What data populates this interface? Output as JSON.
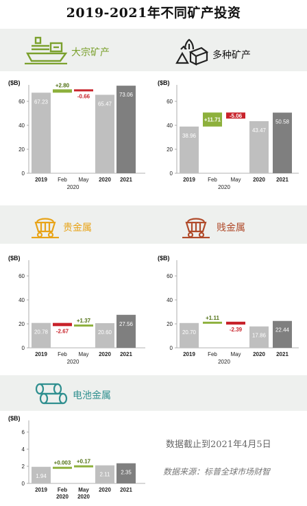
{
  "title": "2019-2021年不同矿产投资",
  "sections": {
    "bulk": {
      "label": "大宗矿产",
      "color": "#7aa02c"
    },
    "diversified": {
      "label": "多种矿产",
      "color": "#111111"
    },
    "precious": {
      "label": "贵金属",
      "color": "#e8a317"
    },
    "base": {
      "label": "贱金属",
      "color": "#b04a2a"
    },
    "battery": {
      "label": "电池金属",
      "color": "#2f8f8f"
    }
  },
  "colors": {
    "light_bar": "#bfbfbf",
    "dark_bar": "#7f7f7f",
    "increase": "#8db03c",
    "decrease": "#c8222a"
  },
  "chart_data": [
    {
      "id": "bulk",
      "type": "bar",
      "subtype": "waterfall",
      "unit": "($B)",
      "ylim": [
        0,
        80
      ],
      "yticks": [
        0,
        20,
        40,
        60
      ],
      "categories": [
        "2019",
        "Feb",
        "May",
        "2020",
        "2021"
      ],
      "year_group_label": "2020",
      "values": [
        67.23,
        2.8,
        -0.66,
        65.47,
        73.06
      ],
      "labels": [
        "67.23",
        "+2.80",
        "-0.66",
        "65.47",
        "73.06"
      ],
      "kinds": [
        "total",
        "increase",
        "decrease",
        "total",
        "total_dark"
      ]
    },
    {
      "id": "diversified",
      "type": "bar",
      "subtype": "waterfall",
      "unit": "($B)",
      "ylim": [
        0,
        80
      ],
      "yticks": [
        0,
        20,
        40,
        60
      ],
      "categories": [
        "2019",
        "Feb",
        "May",
        "2020",
        "2021"
      ],
      "year_group_label": "2020",
      "values": [
        38.96,
        11.71,
        -5.06,
        43.47,
        50.58
      ],
      "labels": [
        "38.96",
        "+11.71",
        "-5.06",
        "43.47",
        "50.58"
      ],
      "kinds": [
        "total",
        "increase",
        "decrease",
        "total",
        "total_dark"
      ]
    },
    {
      "id": "precious",
      "type": "bar",
      "subtype": "waterfall",
      "unit": "($B)",
      "ylim": [
        0,
        80
      ],
      "yticks": [
        0,
        20,
        40,
        60
      ],
      "categories": [
        "2019",
        "Feb",
        "May",
        "2020",
        "2021"
      ],
      "year_group_label": "2020",
      "values": [
        20.78,
        -2.67,
        1.37,
        20.6,
        27.56
      ],
      "labels": [
        "20.78",
        "-2.67",
        "+1.37",
        "20.60",
        "27.56"
      ],
      "kinds": [
        "total",
        "decrease",
        "increase",
        "total",
        "total_dark"
      ]
    },
    {
      "id": "base",
      "type": "bar",
      "subtype": "waterfall",
      "unit": "($B)",
      "ylim": [
        0,
        80
      ],
      "yticks": [
        0,
        20,
        40,
        60
      ],
      "categories": [
        "2019",
        "Feb",
        "May",
        "2020",
        "2021"
      ],
      "year_group_label": "2020",
      "values": [
        20.7,
        1.11,
        -2.39,
        17.86,
        22.44
      ],
      "labels": [
        "20.70",
        "+1.11",
        "-2.39",
        "17.86",
        "22.44"
      ],
      "kinds": [
        "total",
        "increase",
        "decrease",
        "total",
        "total_dark"
      ]
    },
    {
      "id": "battery",
      "type": "bar",
      "subtype": "waterfall",
      "unit": "($B)",
      "ylim": [
        0,
        7
      ],
      "yticks": [
        0,
        2,
        4,
        6
      ],
      "categories": [
        "2019",
        "Feb\n2020",
        "May\n2020",
        "2020",
        "2021"
      ],
      "year_group_label": "",
      "values": [
        1.94,
        0.003,
        0.17,
        2.11,
        2.35
      ],
      "labels": [
        "1.94",
        "+0.003",
        "+0.17",
        "2.11",
        "2.35"
      ],
      "kinds": [
        "total",
        "increase",
        "increase",
        "total",
        "total_dark"
      ]
    }
  ],
  "notes": {
    "cutoff": "数据截止到2021年4月5日",
    "source": "数据来源：标普全球市场财智"
  }
}
